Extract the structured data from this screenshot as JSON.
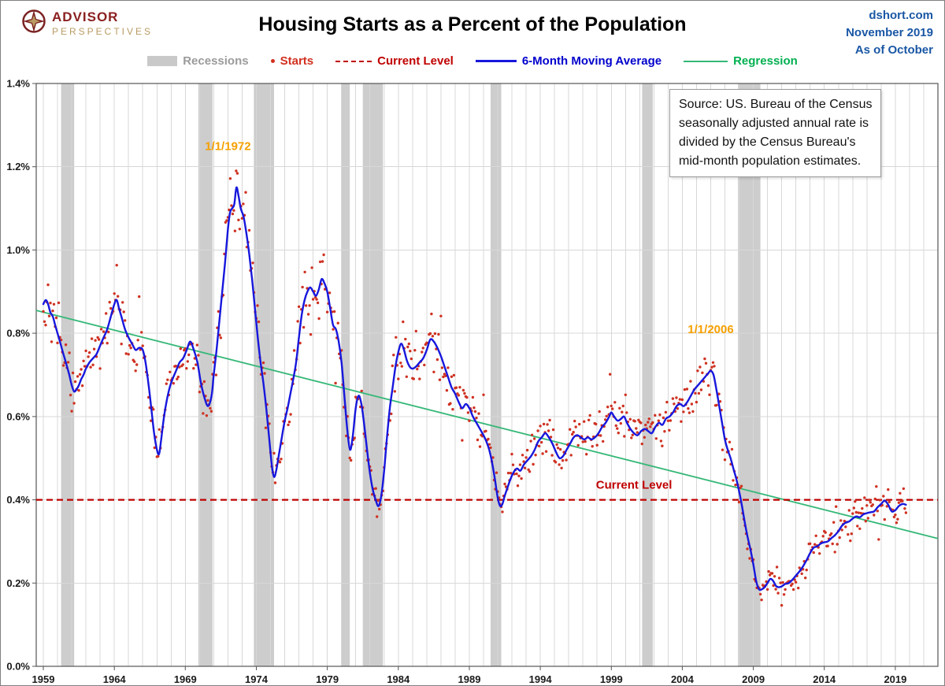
{
  "header": {
    "logo": {
      "line1": "ADVISOR",
      "line2": "PERSPECTIVES"
    },
    "title": "Housing Starts as a Percent of the Population",
    "right_lines": [
      "dshort.com",
      "November 2019",
      "As of October"
    ]
  },
  "legend": [
    {
      "label": "Recessions",
      "type": "band",
      "color": "#c9c9c9",
      "text_color": "#9b9b9b"
    },
    {
      "label": "Starts",
      "type": "dot",
      "color": "#d2301f",
      "text_color": "#d2301f"
    },
    {
      "label": "Current Level",
      "type": "dashed",
      "color": "#c00000",
      "text_color": "#c00000"
    },
    {
      "label": "6-Month Moving Average",
      "type": "line_thick",
      "color": "#1717dd",
      "text_color": "#0000cc"
    },
    {
      "label": "Regression",
      "type": "line_thin",
      "color": "#35b877",
      "text_color": "#00b050"
    }
  ],
  "source_note": "Source: US. Bureau of the Census\nseasonally adjusted annual rate is\ndivided by the Census Bureau's\nmid-month  population estimates.",
  "chart_data": {
    "type": "line+scatter",
    "title": "Housing Starts as a Percent of the Population",
    "x_domain": [
      1958.5,
      2022
    ],
    "y_domain": [
      0,
      1.4
    ],
    "x_ticks": [
      1959,
      1964,
      1969,
      1974,
      1979,
      1984,
      1989,
      1994,
      1999,
      2004,
      2009,
      2014,
      2019
    ],
    "y_ticks": [
      0,
      0.2,
      0.4,
      0.6,
      0.8,
      1.0,
      1.2,
      1.4
    ],
    "y_tick_labels": [
      "0.0%",
      "0.2%",
      "0.4%",
      "0.6%",
      "0.8%",
      "1.0%",
      "1.2%",
      "1.4%"
    ],
    "grid": {
      "x_every_years": 1,
      "y_every": 0.2
    },
    "legend_position": "top",
    "current_level": 0.4,
    "regression": {
      "x1": 1958.5,
      "y1": 0.855,
      "x2": 2022,
      "y2": 0.307
    },
    "recessions": [
      [
        1960.25,
        1961.17
      ],
      [
        1969.92,
        1970.92
      ],
      [
        1973.83,
        1975.25
      ],
      [
        1980.0,
        1980.58
      ],
      [
        1981.5,
        1982.92
      ],
      [
        1990.5,
        1991.25
      ],
      [
        2001.17,
        2001.92
      ],
      [
        2007.92,
        2009.5
      ]
    ],
    "annotations": [
      {
        "text": "1/1/1972",
        "x": 1972.0,
        "y": 1.24,
        "color": "#f5a000"
      },
      {
        "text": "1/1/2006",
        "x": 2006.0,
        "y": 0.8,
        "color": "#f5a000"
      },
      {
        "text": "Current Level",
        "x": 2000.6,
        "y": 0.427,
        "color": "#c00000"
      }
    ],
    "moving_average": [
      [
        1959.0,
        0.87
      ],
      [
        1959.17,
        0.88
      ],
      [
        1959.33,
        0.87
      ],
      [
        1959.5,
        0.85
      ],
      [
        1959.67,
        0.84
      ],
      [
        1959.83,
        0.82
      ],
      [
        1960.0,
        0.8
      ],
      [
        1960.17,
        0.78
      ],
      [
        1960.33,
        0.76
      ],
      [
        1960.5,
        0.74
      ],
      [
        1960.67,
        0.72
      ],
      [
        1960.83,
        0.7
      ],
      [
        1961.0,
        0.675
      ],
      [
        1961.17,
        0.66
      ],
      [
        1961.33,
        0.665
      ],
      [
        1961.5,
        0.675
      ],
      [
        1961.67,
        0.69
      ],
      [
        1961.83,
        0.7
      ],
      [
        1962.0,
        0.715
      ],
      [
        1962.25,
        0.73
      ],
      [
        1962.5,
        0.74
      ],
      [
        1962.75,
        0.75
      ],
      [
        1963.0,
        0.77
      ],
      [
        1963.25,
        0.79
      ],
      [
        1963.5,
        0.81
      ],
      [
        1963.75,
        0.84
      ],
      [
        1964.0,
        0.87
      ],
      [
        1964.17,
        0.88
      ],
      [
        1964.33,
        0.86
      ],
      [
        1964.5,
        0.84
      ],
      [
        1964.75,
        0.81
      ],
      [
        1965.0,
        0.79
      ],
      [
        1965.25,
        0.775
      ],
      [
        1965.5,
        0.76
      ],
      [
        1965.75,
        0.765
      ],
      [
        1966.0,
        0.76
      ],
      [
        1966.2,
        0.73
      ],
      [
        1966.4,
        0.68
      ],
      [
        1966.6,
        0.62
      ],
      [
        1966.8,
        0.56
      ],
      [
        1967.0,
        0.52
      ],
      [
        1967.15,
        0.51
      ],
      [
        1967.3,
        0.545
      ],
      [
        1967.5,
        0.6
      ],
      [
        1967.7,
        0.64
      ],
      [
        1967.9,
        0.67
      ],
      [
        1968.1,
        0.69
      ],
      [
        1968.35,
        0.71
      ],
      [
        1968.6,
        0.73
      ],
      [
        1968.85,
        0.74
      ],
      [
        1969.1,
        0.76
      ],
      [
        1969.35,
        0.78
      ],
      [
        1969.6,
        0.76
      ],
      [
        1969.85,
        0.73
      ],
      [
        1970.1,
        0.68
      ],
      [
        1970.35,
        0.645
      ],
      [
        1970.6,
        0.625
      ],
      [
        1970.85,
        0.65
      ],
      [
        1971.0,
        0.7
      ],
      [
        1971.2,
        0.76
      ],
      [
        1971.4,
        0.83
      ],
      [
        1971.6,
        0.9
      ],
      [
        1971.8,
        0.97
      ],
      [
        1972.0,
        1.05
      ],
      [
        1972.15,
        1.09
      ],
      [
        1972.3,
        1.1
      ],
      [
        1972.45,
        1.11
      ],
      [
        1972.6,
        1.15
      ],
      [
        1972.75,
        1.13
      ],
      [
        1972.9,
        1.1
      ],
      [
        1973.1,
        1.08
      ],
      [
        1973.3,
        1.04
      ],
      [
        1973.5,
        0.99
      ],
      [
        1973.7,
        0.93
      ],
      [
        1973.9,
        0.86
      ],
      [
        1974.1,
        0.79
      ],
      [
        1974.3,
        0.73
      ],
      [
        1974.5,
        0.68
      ],
      [
        1974.7,
        0.62
      ],
      [
        1974.9,
        0.55
      ],
      [
        1975.1,
        0.48
      ],
      [
        1975.25,
        0.455
      ],
      [
        1975.4,
        0.47
      ],
      [
        1975.6,
        0.51
      ],
      [
        1975.8,
        0.55
      ],
      [
        1976.0,
        0.59
      ],
      [
        1976.2,
        0.62
      ],
      [
        1976.4,
        0.655
      ],
      [
        1976.6,
        0.69
      ],
      [
        1976.8,
        0.73
      ],
      [
        1977.0,
        0.79
      ],
      [
        1977.2,
        0.845
      ],
      [
        1977.4,
        0.88
      ],
      [
        1977.6,
        0.9
      ],
      [
        1977.8,
        0.91
      ],
      [
        1978.0,
        0.9
      ],
      [
        1978.2,
        0.89
      ],
      [
        1978.4,
        0.905
      ],
      [
        1978.6,
        0.93
      ],
      [
        1978.8,
        0.92
      ],
      [
        1979.0,
        0.9
      ],
      [
        1979.2,
        0.86
      ],
      [
        1979.4,
        0.82
      ],
      [
        1979.6,
        0.81
      ],
      [
        1979.8,
        0.78
      ],
      [
        1980.0,
        0.73
      ],
      [
        1980.2,
        0.65
      ],
      [
        1980.4,
        0.57
      ],
      [
        1980.6,
        0.52
      ],
      [
        1980.8,
        0.555
      ],
      [
        1981.0,
        0.62
      ],
      [
        1981.2,
        0.65
      ],
      [
        1981.4,
        0.63
      ],
      [
        1981.6,
        0.58
      ],
      [
        1981.8,
        0.52
      ],
      [
        1982.0,
        0.465
      ],
      [
        1982.2,
        0.425
      ],
      [
        1982.4,
        0.4
      ],
      [
        1982.6,
        0.385
      ],
      [
        1982.8,
        0.41
      ],
      [
        1983.0,
        0.47
      ],
      [
        1983.2,
        0.55
      ],
      [
        1983.4,
        0.62
      ],
      [
        1983.6,
        0.67
      ],
      [
        1983.8,
        0.72
      ],
      [
        1984.0,
        0.755
      ],
      [
        1984.2,
        0.775
      ],
      [
        1984.4,
        0.76
      ],
      [
        1984.6,
        0.735
      ],
      [
        1984.8,
        0.72
      ],
      [
        1985.0,
        0.715
      ],
      [
        1985.25,
        0.72
      ],
      [
        1985.5,
        0.73
      ],
      [
        1985.75,
        0.74
      ],
      [
        1986.0,
        0.76
      ],
      [
        1986.25,
        0.785
      ],
      [
        1986.5,
        0.78
      ],
      [
        1986.75,
        0.765
      ],
      [
        1987.0,
        0.745
      ],
      [
        1987.25,
        0.72
      ],
      [
        1987.5,
        0.695
      ],
      [
        1987.75,
        0.67
      ],
      [
        1988.0,
        0.655
      ],
      [
        1988.25,
        0.635
      ],
      [
        1988.5,
        0.62
      ],
      [
        1988.75,
        0.63
      ],
      [
        1989.0,
        0.62
      ],
      [
        1989.25,
        0.6
      ],
      [
        1989.5,
        0.585
      ],
      [
        1989.75,
        0.57
      ],
      [
        1990.0,
        0.555
      ],
      [
        1990.2,
        0.54
      ],
      [
        1990.4,
        0.52
      ],
      [
        1990.6,
        0.49
      ],
      [
        1990.8,
        0.45
      ],
      [
        1991.0,
        0.405
      ],
      [
        1991.17,
        0.385
      ],
      [
        1991.33,
        0.39
      ],
      [
        1991.5,
        0.41
      ],
      [
        1991.7,
        0.43
      ],
      [
        1991.9,
        0.45
      ],
      [
        1992.1,
        0.465
      ],
      [
        1992.35,
        0.475
      ],
      [
        1992.6,
        0.47
      ],
      [
        1992.85,
        0.485
      ],
      [
        1993.1,
        0.495
      ],
      [
        1993.35,
        0.505
      ],
      [
        1993.6,
        0.52
      ],
      [
        1993.85,
        0.54
      ],
      [
        1994.1,
        0.55
      ],
      [
        1994.35,
        0.56
      ],
      [
        1994.6,
        0.55
      ],
      [
        1994.85,
        0.535
      ],
      [
        1995.1,
        0.515
      ],
      [
        1995.35,
        0.5
      ],
      [
        1995.6,
        0.505
      ],
      [
        1995.85,
        0.52
      ],
      [
        1996.1,
        0.535
      ],
      [
        1996.35,
        0.55
      ],
      [
        1996.6,
        0.555
      ],
      [
        1996.85,
        0.55
      ],
      [
        1997.1,
        0.545
      ],
      [
        1997.35,
        0.55
      ],
      [
        1997.6,
        0.545
      ],
      [
        1997.85,
        0.55
      ],
      [
        1998.1,
        0.56
      ],
      [
        1998.35,
        0.575
      ],
      [
        1998.6,
        0.585
      ],
      [
        1998.85,
        0.6
      ],
      [
        1999.0,
        0.61
      ],
      [
        1999.2,
        0.6
      ],
      [
        1999.45,
        0.59
      ],
      [
        1999.7,
        0.595
      ],
      [
        1999.9,
        0.6
      ],
      [
        2000.1,
        0.585
      ],
      [
        2000.35,
        0.57
      ],
      [
        2000.6,
        0.56
      ],
      [
        2000.85,
        0.555
      ],
      [
        2001.1,
        0.565
      ],
      [
        2001.35,
        0.57
      ],
      [
        2001.6,
        0.565
      ],
      [
        2001.85,
        0.56
      ],
      [
        2002.1,
        0.575
      ],
      [
        2002.35,
        0.585
      ],
      [
        2002.6,
        0.58
      ],
      [
        2002.85,
        0.595
      ],
      [
        2003.1,
        0.6
      ],
      [
        2003.35,
        0.61
      ],
      [
        2003.6,
        0.625
      ],
      [
        2003.85,
        0.63
      ],
      [
        2004.1,
        0.625
      ],
      [
        2004.35,
        0.635
      ],
      [
        2004.6,
        0.65
      ],
      [
        2004.85,
        0.665
      ],
      [
        2005.1,
        0.675
      ],
      [
        2005.35,
        0.685
      ],
      [
        2005.6,
        0.695
      ],
      [
        2005.85,
        0.705
      ],
      [
        2006.0,
        0.71
      ],
      [
        2006.2,
        0.7
      ],
      [
        2006.4,
        0.665
      ],
      [
        2006.6,
        0.625
      ],
      [
        2006.8,
        0.585
      ],
      [
        2007.0,
        0.545
      ],
      [
        2007.2,
        0.52
      ],
      [
        2007.4,
        0.5
      ],
      [
        2007.6,
        0.475
      ],
      [
        2007.8,
        0.45
      ],
      [
        2008.0,
        0.42
      ],
      [
        2008.2,
        0.385
      ],
      [
        2008.4,
        0.345
      ],
      [
        2008.6,
        0.31
      ],
      [
        2008.8,
        0.28
      ],
      [
        2009.0,
        0.245
      ],
      [
        2009.2,
        0.205
      ],
      [
        2009.4,
        0.185
      ],
      [
        2009.6,
        0.185
      ],
      [
        2009.8,
        0.19
      ],
      [
        2010.0,
        0.2
      ],
      [
        2010.2,
        0.21
      ],
      [
        2010.4,
        0.205
      ],
      [
        2010.6,
        0.193
      ],
      [
        2010.8,
        0.19
      ],
      [
        2011.0,
        0.192
      ],
      [
        2011.25,
        0.198
      ],
      [
        2011.5,
        0.2
      ],
      [
        2011.75,
        0.208
      ],
      [
        2012.0,
        0.218
      ],
      [
        2012.25,
        0.228
      ],
      [
        2012.5,
        0.24
      ],
      [
        2012.75,
        0.255
      ],
      [
        2013.0,
        0.272
      ],
      [
        2013.25,
        0.285
      ],
      [
        2013.5,
        0.288
      ],
      [
        2013.75,
        0.295
      ],
      [
        2014.0,
        0.298
      ],
      [
        2014.25,
        0.3
      ],
      [
        2014.5,
        0.308
      ],
      [
        2014.75,
        0.315
      ],
      [
        2015.0,
        0.325
      ],
      [
        2015.25,
        0.338
      ],
      [
        2015.5,
        0.345
      ],
      [
        2015.75,
        0.348
      ],
      [
        2016.0,
        0.355
      ],
      [
        2016.25,
        0.36
      ],
      [
        2016.5,
        0.358
      ],
      [
        2016.75,
        0.365
      ],
      [
        2017.0,
        0.368
      ],
      [
        2017.25,
        0.37
      ],
      [
        2017.5,
        0.372
      ],
      [
        2017.75,
        0.382
      ],
      [
        2018.0,
        0.39
      ],
      [
        2018.25,
        0.398
      ],
      [
        2018.5,
        0.388
      ],
      [
        2018.75,
        0.372
      ],
      [
        2019.0,
        0.375
      ],
      [
        2019.25,
        0.385
      ],
      [
        2019.5,
        0.39
      ],
      [
        2019.75,
        0.388
      ]
    ],
    "scatter": {
      "name": "Starts",
      "note": "monthly values scattered around the 6-month moving average",
      "start": 1959.0,
      "end": 2019.83,
      "step_years": 0.08333,
      "jitter_base": 0.012,
      "jitter_scale": 0.055,
      "seed": 1234567
    },
    "colors": {
      "scatter": "#cf3222",
      "ma_line": "#1717dd",
      "regression": "#35b877",
      "current_level": "#c00000",
      "recession_band": "#cdcdcd",
      "grid": "#d8d8d8",
      "axis_frame": "#555555",
      "tick_label": "#1a1a1a",
      "annotation_date": "#f5a000"
    }
  }
}
